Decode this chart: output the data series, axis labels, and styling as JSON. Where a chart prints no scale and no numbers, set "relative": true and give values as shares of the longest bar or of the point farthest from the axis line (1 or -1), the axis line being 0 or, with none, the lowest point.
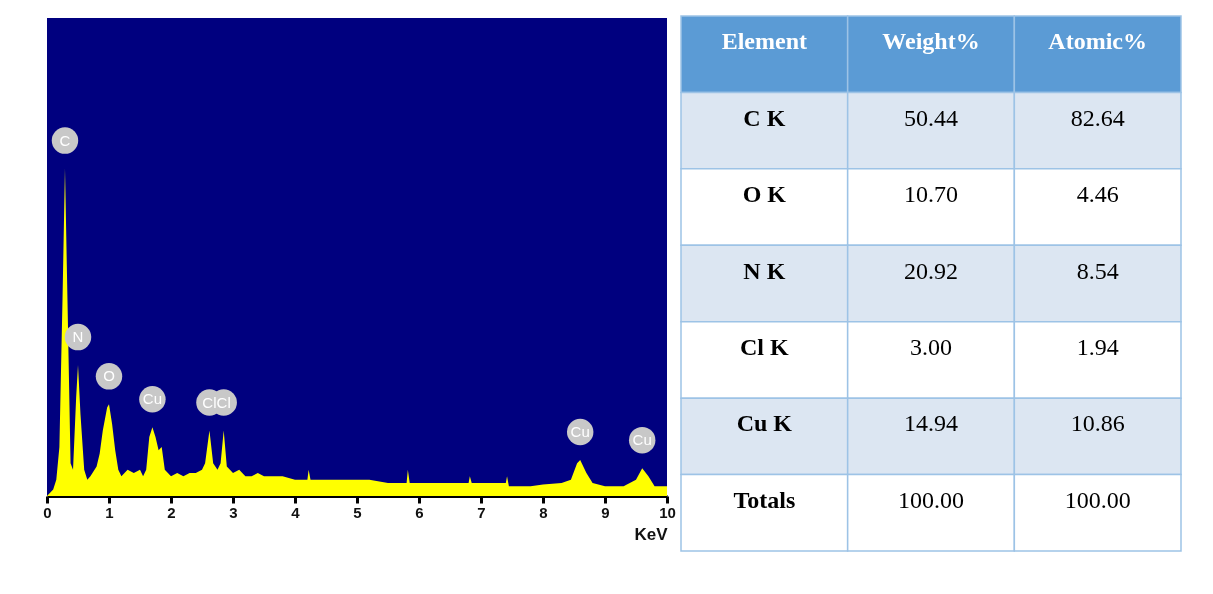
{
  "chart_data": [
    {
      "type": "area",
      "relative": true,
      "xlabel": "KeV",
      "color": "#ffff00",
      "grid": false,
      "x": [
        0,
        0.1,
        0.15,
        0.2,
        0.25,
        0.29,
        0.33,
        0.38,
        0.42,
        0.47,
        0.5,
        0.54,
        0.6,
        0.65,
        0.7,
        0.8,
        0.85,
        0.9,
        0.97,
        1.0,
        1.05,
        1.1,
        1.15,
        1.2,
        1.3,
        1.4,
        1.5,
        1.55,
        1.6,
        1.65,
        1.7,
        1.75,
        1.8,
        1.85,
        1.9,
        2.0,
        2.1,
        2.2,
        2.3,
        2.4,
        2.5,
        2.55,
        2.62,
        2.68,
        2.75,
        2.8,
        2.85,
        2.9,
        3.0,
        3.1,
        3.2,
        3.3,
        3.4,
        3.5,
        3.6,
        3.8,
        4.0,
        4.2,
        4.22,
        4.25,
        4.5,
        4.8,
        5.0,
        5.2,
        5.5,
        5.8,
        5.82,
        5.85,
        6.0,
        6.3,
        6.6,
        6.8,
        6.82,
        6.85,
        7.0,
        7.4,
        7.42,
        7.45,
        7.8,
        8.0,
        8.3,
        8.45,
        8.55,
        8.6,
        8.7,
        8.8,
        9.0,
        9.3,
        9.5,
        9.6,
        9.7,
        9.8,
        10
      ],
      "values": [
        0,
        0.02,
        0.05,
        0.15,
        0.6,
        1.0,
        0.6,
        0.1,
        0.08,
        0.3,
        0.4,
        0.25,
        0.08,
        0.05,
        0.06,
        0.09,
        0.13,
        0.2,
        0.27,
        0.28,
        0.22,
        0.14,
        0.08,
        0.06,
        0.08,
        0.07,
        0.08,
        0.06,
        0.08,
        0.18,
        0.21,
        0.18,
        0.14,
        0.15,
        0.08,
        0.06,
        0.07,
        0.06,
        0.07,
        0.07,
        0.08,
        0.1,
        0.2,
        0.1,
        0.08,
        0.1,
        0.2,
        0.09,
        0.07,
        0.08,
        0.06,
        0.06,
        0.07,
        0.06,
        0.06,
        0.06,
        0.05,
        0.05,
        0.08,
        0.05,
        0.05,
        0.05,
        0.05,
        0.05,
        0.04,
        0.04,
        0.08,
        0.04,
        0.04,
        0.04,
        0.04,
        0.04,
        0.06,
        0.04,
        0.04,
        0.04,
        0.06,
        0.03,
        0.03,
        0.035,
        0.04,
        0.05,
        0.1,
        0.11,
        0.07,
        0.04,
        0.03,
        0.03,
        0.05,
        0.085,
        0.06,
        0.03,
        0.03
      ],
      "xlim": [
        0,
        10
      ],
      "xticks": [
        0,
        1,
        2,
        3,
        4,
        5,
        6,
        7,
        8,
        9,
        10
      ],
      "annotations": [
        {
          "text": "C",
          "x": 0.29,
          "y": 1.0
        },
        {
          "text": "N",
          "x": 0.5,
          "y": 0.4
        },
        {
          "text": "O",
          "x": 1.0,
          "y": 0.28
        },
        {
          "text": "Cu",
          "x": 1.7,
          "y": 0.21
        },
        {
          "text": "Cl",
          "x": 2.62,
          "y": 0.2
        },
        {
          "text": "Cl",
          "x": 2.85,
          "y": 0.2
        },
        {
          "text": "Cu",
          "x": 8.6,
          "y": 0.11
        },
        {
          "text": "Cu",
          "x": 9.6,
          "y": 0.085
        }
      ]
    },
    {
      "type": "other",
      "categories": [
        "Element",
        "Weight%",
        "Atomic%"
      ],
      "y_categories": [
        "C K",
        "O K",
        "N K",
        "Cl K",
        "Cu K",
        "Totals"
      ],
      "cell_labels": [
        [
          "50.44",
          "82.64"
        ],
        [
          "10.70",
          "4.46"
        ],
        [
          "20.92",
          "8.54"
        ],
        [
          "3.00",
          "1.94"
        ],
        [
          "14.94",
          "10.86"
        ],
        [
          "100.00",
          "100.00"
        ]
      ]
    }
  ]
}
